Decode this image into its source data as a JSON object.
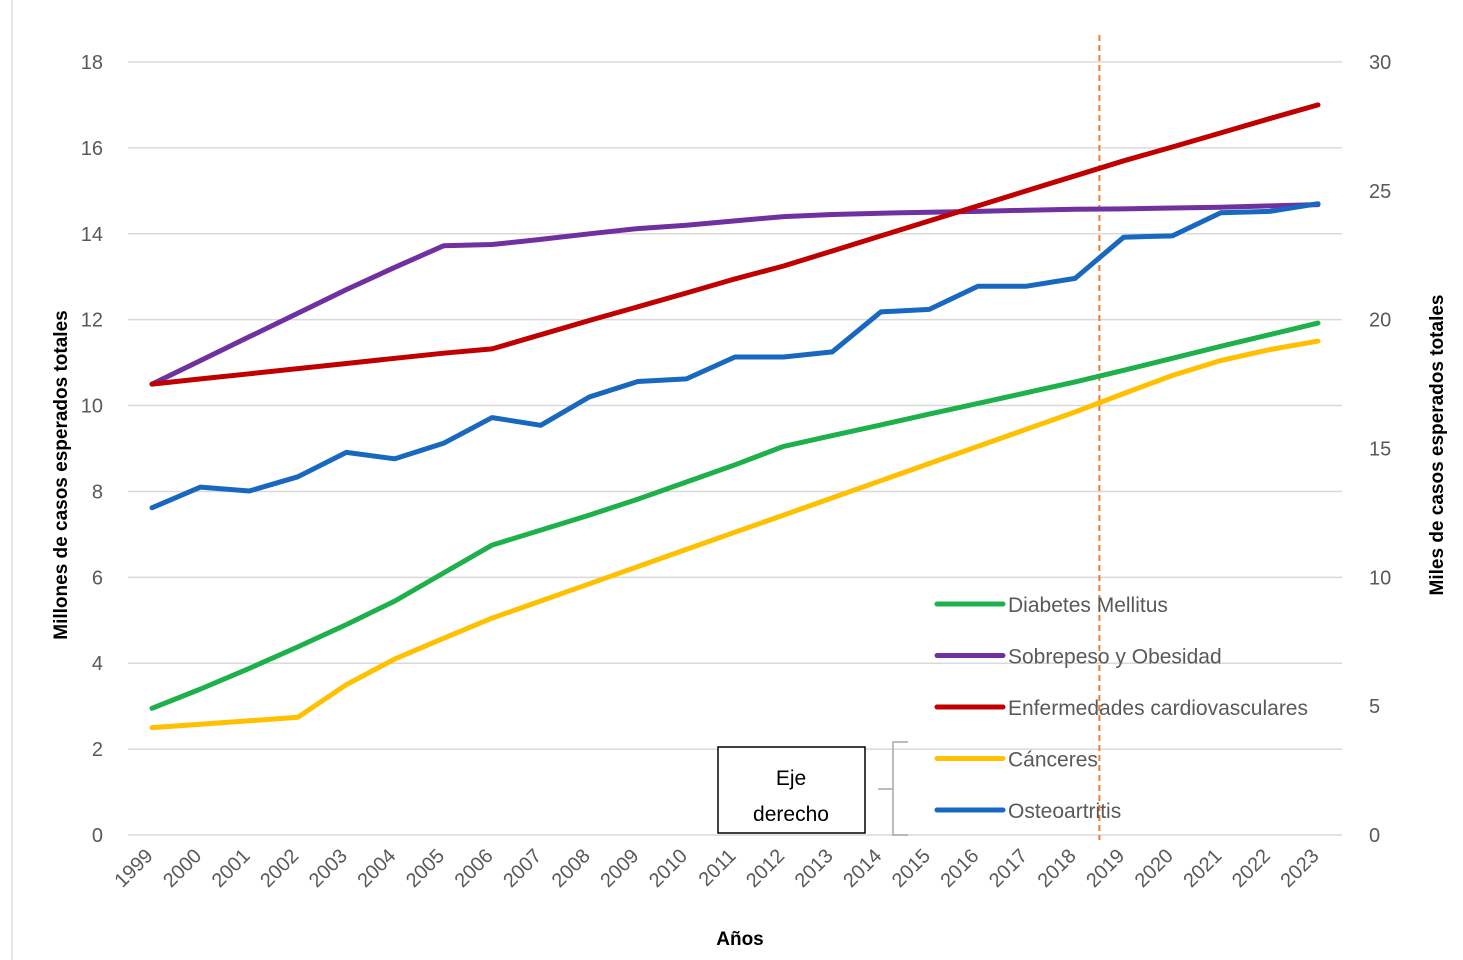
{
  "chart_data": {
    "type": "line",
    "xlabel": "Años",
    "ylabel_left": "Millones de casos esperados totales",
    "ylabel_right": "Miles de casos esperados totales",
    "ylim_left": [
      0,
      18
    ],
    "ylim_right": [
      0,
      30
    ],
    "yticks_left": [
      "0",
      "2",
      "4",
      "6",
      "8",
      "10",
      "12",
      "14",
      "16",
      "18"
    ],
    "yticks_right": [
      "0",
      "5",
      "10",
      "15",
      "20",
      "25",
      "30"
    ],
    "grid": "horizontal",
    "legend_position": "bottom-right",
    "reference_line": {
      "year": 2018.5,
      "style": "dashed",
      "color": "#ED7D31"
    },
    "right_axis_note": {
      "line1": "Eje",
      "line2": "derecho"
    },
    "categories": [
      "1999",
      "2000",
      "2001",
      "2002",
      "2003",
      "2004",
      "2005",
      "2006",
      "2007",
      "2008",
      "2009",
      "2010",
      "2011",
      "2012",
      "2013",
      "2014",
      "2015",
      "2016",
      "2017",
      "2018",
      "2019",
      "2020",
      "2021",
      "2022",
      "2023"
    ],
    "series": [
      {
        "name": "Diabetes Mellitus",
        "axis": "left",
        "color": "#1DB04B",
        "values": [
          2.95,
          3.4,
          3.88,
          4.38,
          4.9,
          5.45,
          6.1,
          6.75,
          7.1,
          7.45,
          7.82,
          8.22,
          8.62,
          9.05,
          9.3,
          9.55,
          9.8,
          10.05,
          10.3,
          10.55,
          10.82,
          11.1,
          11.38,
          11.65,
          11.92
        ]
      },
      {
        "name": "Sobrepeso y Obesidad",
        "axis": "left",
        "color": "#7030A0",
        "values": [
          10.5,
          11.05,
          11.6,
          12.15,
          12.7,
          13.22,
          13.72,
          13.75,
          13.87,
          14.0,
          14.12,
          14.2,
          14.3,
          14.4,
          14.45,
          14.48,
          14.5,
          14.52,
          14.55,
          14.57,
          14.58,
          14.6,
          14.62,
          14.65,
          14.68
        ]
      },
      {
        "name": "Enfermedades cardiovasculares",
        "axis": "left",
        "color": "#C00000",
        "values": [
          10.5,
          10.62,
          10.74,
          10.86,
          10.98,
          11.1,
          11.22,
          11.32,
          11.65,
          11.98,
          12.3,
          12.62,
          12.95,
          13.25,
          13.6,
          13.95,
          14.3,
          14.65,
          15.0,
          15.35,
          15.7,
          16.02,
          16.35,
          16.68,
          17.0
        ]
      },
      {
        "name": "Cánceres",
        "axis": "left",
        "color": "#FFC000",
        "values": [
          2.5,
          2.58,
          2.66,
          2.74,
          3.5,
          4.1,
          4.58,
          5.05,
          5.45,
          5.85,
          6.25,
          6.65,
          7.05,
          7.45,
          7.85,
          8.25,
          8.65,
          9.05,
          9.45,
          9.85,
          10.28,
          10.7,
          11.05,
          11.3,
          11.5
        ]
      },
      {
        "name": "Osteoartritis",
        "axis": "right",
        "color": "#1868C0",
        "values": [
          12.7,
          13.5,
          13.35,
          13.9,
          14.85,
          14.6,
          15.2,
          16.2,
          15.9,
          17.0,
          17.6,
          17.7,
          18.55,
          18.55,
          18.75,
          20.3,
          20.4,
          21.3,
          21.3,
          21.6,
          23.2,
          23.25,
          24.15,
          24.2,
          24.5
        ]
      }
    ]
  }
}
